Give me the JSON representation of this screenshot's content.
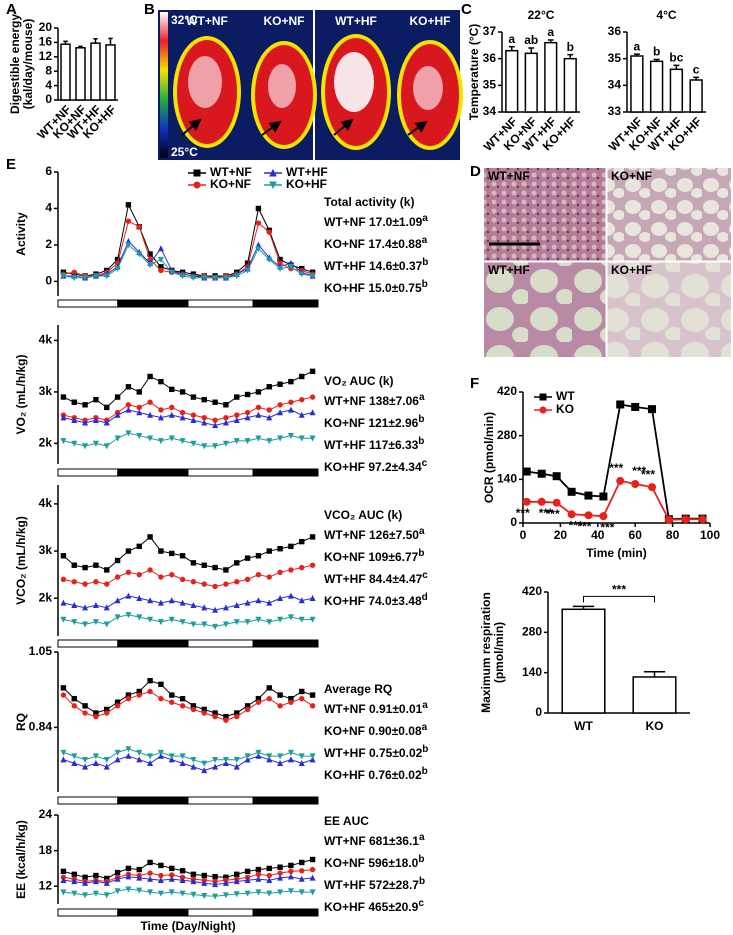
{
  "panel_labels": [
    "A",
    "B",
    "C",
    "D",
    "E",
    "F"
  ],
  "thermal_image": {
    "labels": [
      "WT+NF",
      "KO+NF",
      "WT+HF",
      "KO+HF"
    ],
    "scale_max": "32°C",
    "scale_min": "25°C"
  },
  "histology": {
    "labels": [
      "WT+NF",
      "KO+NF",
      "WT+HF",
      "KO+HF"
    ]
  },
  "chart_data": [
    {
      "type": "bar",
      "y_label": [
        "Digestible energy",
        "(kal/day/mouse)"
      ],
      "categories": [
        "WT+NF",
        "KO+NF",
        "WT+HF",
        "KO+HF"
      ],
      "values": [
        15.5,
        14.5,
        15.8,
        15.3
      ],
      "errors": [
        0.8,
        0.4,
        1.2,
        1.8
      ],
      "color": "#ffffff",
      "ylim": [
        0,
        20
      ],
      "yticks": [
        0,
        4,
        8,
        12,
        16,
        20
      ]
    },
    {
      "type": "bar",
      "title": "22°C",
      "y_label": [
        "Temperature (°C)"
      ],
      "categories": [
        "WT+NF",
        "KO+NF",
        "WT+HF",
        "KO+HF"
      ],
      "values": [
        36.3,
        36.2,
        36.6,
        36.0
      ],
      "errors": [
        0.15,
        0.2,
        0.1,
        0.15
      ],
      "annotations": [
        "a",
        "ab",
        "a",
        "b"
      ],
      "color": "#ffffff",
      "ylim": [
        34,
        37
      ],
      "yticks": [
        34,
        35,
        36,
        37
      ]
    },
    {
      "type": "bar",
      "title": "4°C",
      "categories": [
        "WT+NF",
        "KO+NF",
        "WT+HF",
        "KO+HF"
      ],
      "values": [
        35.1,
        34.9,
        34.6,
        34.2
      ],
      "errors": [
        0.07,
        0.07,
        0.15,
        0.1
      ],
      "annotations": [
        "a",
        "b",
        "bc",
        "c"
      ],
      "color": "#ffffff",
      "ylim": [
        33,
        36
      ],
      "yticks": [
        33,
        34,
        35,
        36
      ]
    },
    {
      "type": "line",
      "y_label": [
        "Activity"
      ],
      "ylim": [
        -0.8,
        6
      ],
      "yticks": [
        0,
        2,
        4,
        6
      ],
      "legend": "top",
      "stats_title": "Total activity (k)",
      "stats": [
        {
          "text": "WT+NF 17.0±1.09",
          "letter": "a"
        },
        {
          "text": "KO+NF 17.4±0.88",
          "letter": "a"
        },
        {
          "text": "WT+HF 14.6±0.37",
          "letter": "b"
        },
        {
          "text": "KO+HF 15.0±0.75",
          "letter": "b"
        }
      ],
      "series": [
        {
          "name": "WT+NF",
          "color": "#000000",
          "marker": "square",
          "values": [
            0.5,
            0.4,
            0.3,
            0.4,
            0.6,
            1.2,
            4.2,
            3.0,
            1.5,
            0.8,
            0.6,
            0.5,
            0.4,
            0.3,
            0.3,
            0.3,
            0.5,
            1.0,
            4.0,
            2.8,
            1.2,
            0.9,
            0.7,
            0.5
          ]
        },
        {
          "name": "KO+NF",
          "color": "#e8211b",
          "marker": "circle",
          "values": [
            0.4,
            0.5,
            0.3,
            0.3,
            0.5,
            1.0,
            3.3,
            3.0,
            1.2,
            0.6,
            0.5,
            0.4,
            0.3,
            0.3,
            0.2,
            0.3,
            0.4,
            0.8,
            3.2,
            2.7,
            1.0,
            0.7,
            0.6,
            0.4
          ]
        },
        {
          "name": "WT+HF",
          "color": "#2b2bd6",
          "marker": "triangle",
          "values": [
            0.3,
            0.3,
            0.2,
            0.3,
            0.4,
            0.8,
            2.2,
            1.6,
            1.0,
            1.8,
            0.6,
            0.4,
            0.3,
            0.2,
            0.2,
            0.2,
            0.4,
            0.7,
            2.0,
            1.3,
            0.8,
            1.0,
            0.5,
            0.3
          ]
        },
        {
          "name": "KO+HF",
          "color": "#1a9e9e",
          "marker": "triangle-down",
          "values": [
            0.3,
            0.2,
            0.2,
            0.3,
            0.3,
            0.7,
            2.0,
            1.5,
            0.9,
            1.2,
            0.5,
            0.3,
            0.2,
            0.2,
            0.2,
            0.2,
            0.3,
            0.6,
            1.8,
            1.2,
            0.7,
            0.8,
            0.4,
            0.3
          ]
        }
      ]
    },
    {
      "type": "line",
      "y_label": [
        "VO₂ (mL/h/kg)"
      ],
      "ylim": [
        1600,
        4300
      ],
      "yticks": [
        {
          "value": 2000,
          "label": "2k"
        },
        {
          "value": 3000,
          "label": "3k"
        },
        {
          "value": 4000,
          "label": "4k"
        }
      ],
      "stats_title": "VO₂  AUC (k)",
      "stats": [
        {
          "text": "WT+NF 138±7.06",
          "letter": "a"
        },
        {
          "text": "KO+NF 121±2.96",
          "letter": "b"
        },
        {
          "text": "WT+HF 117±6.33",
          "letter": "b"
        },
        {
          "text": "KO+HF 97.2±4.34",
          "letter": "c"
        }
      ],
      "series": [
        {
          "color": "#000000",
          "marker": "square",
          "values": [
            2900,
            2800,
            2750,
            2850,
            2700,
            2900,
            3100,
            3000,
            3300,
            3200,
            3050,
            3000,
            2900,
            2850,
            2800,
            2750,
            2900,
            2950,
            3000,
            3100,
            3150,
            3200,
            3300,
            3400
          ]
        },
        {
          "color": "#e8211b",
          "marker": "circle",
          "values": [
            2550,
            2500,
            2450,
            2500,
            2450,
            2600,
            2750,
            2700,
            2800,
            2650,
            2700,
            2600,
            2550,
            2500,
            2450,
            2500,
            2550,
            2600,
            2700,
            2650,
            2750,
            2800,
            2850,
            2900
          ]
        },
        {
          "color": "#2b2bd6",
          "marker": "triangle",
          "values": [
            2500,
            2450,
            2400,
            2450,
            2400,
            2550,
            2650,
            2600,
            2550,
            2500,
            2550,
            2500,
            2450,
            2400,
            2350,
            2400,
            2450,
            2500,
            2550,
            2500,
            2600,
            2650,
            2550,
            2600
          ]
        },
        {
          "color": "#1a9e9e",
          "marker": "triangle-down",
          "values": [
            2050,
            2000,
            1950,
            2000,
            1950,
            2100,
            2200,
            2150,
            2100,
            2050,
            2100,
            2050,
            2000,
            1950,
            1950,
            2000,
            2050,
            2050,
            2100,
            2050,
            2100,
            2150,
            2100,
            2100
          ]
        }
      ]
    },
    {
      "type": "line",
      "y_label": [
        "VCO₂ (mL/h/kg)"
      ],
      "ylim": [
        1200,
        4400
      ],
      "yticks": [
        {
          "value": 2000,
          "label": "2k"
        },
        {
          "value": 3000,
          "label": "3k"
        },
        {
          "value": 4000,
          "label": "4k"
        }
      ],
      "stats_title": "VCO₂  AUC (k)",
      "stats": [
        {
          "text": "WT+NF 126±7.50",
          "letter": "a"
        },
        {
          "text": "KO+NF 109±6.77",
          "letter": "b"
        },
        {
          "text": "WT+HF 84.4±4.47",
          "letter": "c"
        },
        {
          "text": "KO+HF 74.0±3.48",
          "letter": "d"
        }
      ],
      "series": [
        {
          "color": "#000000",
          "marker": "square",
          "values": [
            2900,
            2700,
            2650,
            2700,
            2600,
            2800,
            3000,
            3100,
            3300,
            3000,
            2950,
            2900,
            2750,
            2700,
            2650,
            2600,
            2750,
            2850,
            2900,
            3000,
            3050,
            3100,
            3200,
            3300
          ]
        },
        {
          "color": "#e8211b",
          "marker": "circle",
          "values": [
            2400,
            2350,
            2300,
            2350,
            2300,
            2450,
            2550,
            2500,
            2600,
            2450,
            2500,
            2400,
            2350,
            2300,
            2250,
            2300,
            2350,
            2400,
            2500,
            2450,
            2550,
            2600,
            2650,
            2700
          ]
        },
        {
          "color": "#2b2bd6",
          "marker": "triangle",
          "values": [
            1900,
            1850,
            1800,
            1850,
            1800,
            1950,
            2050,
            2000,
            1950,
            1900,
            1950,
            1900,
            1850,
            1800,
            1750,
            1800,
            1850,
            1900,
            1950,
            1900,
            2000,
            2050,
            1950,
            2000
          ]
        },
        {
          "color": "#1a9e9e",
          "marker": "triangle-down",
          "values": [
            1550,
            1500,
            1450,
            1500,
            1450,
            1600,
            1650,
            1600,
            1550,
            1500,
            1550,
            1500,
            1450,
            1450,
            1400,
            1450,
            1500,
            1500,
            1550,
            1500,
            1550,
            1600,
            1550,
            1550
          ]
        }
      ]
    },
    {
      "type": "line",
      "y_label": [
        "RQ"
      ],
      "ylim": [
        0.66,
        1.05
      ],
      "yticks": [
        0.84,
        1.05
      ],
      "stats_title": "Average RQ",
      "stats": [
        {
          "text": "WT+NF 0.91±0.01",
          "letter": "a"
        },
        {
          "text": "KO+NF 0.90±0.08",
          "letter": "a"
        },
        {
          "text": "WT+HF 0.75±0.02",
          "letter": "b"
        },
        {
          "text": "KO+HF 0.76±0.02",
          "letter": "b"
        }
      ],
      "series": [
        {
          "color": "#000000",
          "marker": "square",
          "values": [
            0.95,
            0.92,
            0.9,
            0.88,
            0.89,
            0.91,
            0.93,
            0.94,
            0.97,
            0.96,
            0.93,
            0.92,
            0.9,
            0.89,
            0.88,
            0.87,
            0.88,
            0.9,
            0.92,
            0.95,
            0.93,
            0.92,
            0.94,
            0.93
          ]
        },
        {
          "color": "#e8211b",
          "marker": "circle",
          "values": [
            0.93,
            0.9,
            0.88,
            0.87,
            0.88,
            0.9,
            0.92,
            0.93,
            0.94,
            0.92,
            0.91,
            0.9,
            0.89,
            0.88,
            0.87,
            0.86,
            0.87,
            0.89,
            0.91,
            0.92,
            0.9,
            0.91,
            0.92,
            0.9
          ]
        },
        {
          "color": "#2b2bd6",
          "marker": "triangle",
          "values": [
            0.75,
            0.74,
            0.73,
            0.74,
            0.73,
            0.75,
            0.76,
            0.75,
            0.74,
            0.76,
            0.75,
            0.74,
            0.73,
            0.72,
            0.73,
            0.74,
            0.73,
            0.75,
            0.76,
            0.75,
            0.74,
            0.75,
            0.74,
            0.75
          ]
        },
        {
          "color": "#1a9e9e",
          "marker": "triangle-down",
          "values": [
            0.77,
            0.76,
            0.75,
            0.76,
            0.75,
            0.77,
            0.78,
            0.77,
            0.76,
            0.77,
            0.76,
            0.76,
            0.75,
            0.74,
            0.75,
            0.75,
            0.75,
            0.76,
            0.77,
            0.76,
            0.76,
            0.77,
            0.76,
            0.76
          ]
        }
      ]
    },
    {
      "type": "line",
      "y_label": [
        "EE (kcal/h/kg)"
      ],
      "x_label": "Time (Day/Night)",
      "ylim": [
        9,
        24
      ],
      "yticks": [
        12,
        18,
        24
      ],
      "stats_title": "EE AUC",
      "stats": [
        {
          "text": "WT+NF 681±36.1",
          "letter": "a"
        },
        {
          "text": "KO+NF 596±18.0",
          "letter": "b"
        },
        {
          "text": "WT+HF 572±28.7",
          "letter": "b"
        },
        {
          "text": "KO+HF 465±20.9",
          "letter": "c"
        }
      ],
      "series": [
        {
          "color": "#000000",
          "marker": "square",
          "values": [
            14.5,
            14.0,
            13.5,
            13.8,
            13.3,
            14.3,
            15.0,
            14.8,
            16.0,
            15.5,
            15.0,
            14.6,
            14.0,
            13.8,
            13.6,
            13.5,
            14.0,
            14.5,
            14.8,
            15.0,
            15.2,
            15.5,
            16.0,
            16.5
          ]
        },
        {
          "color": "#e8211b",
          "marker": "circle",
          "values": [
            13.5,
            13.2,
            12.8,
            13.0,
            12.8,
            13.5,
            14.0,
            13.8,
            14.2,
            13.8,
            13.9,
            13.5,
            13.2,
            13.0,
            12.8,
            13.0,
            13.2,
            13.5,
            14.0,
            13.8,
            14.2,
            14.5,
            14.6,
            14.8
          ]
        },
        {
          "color": "#2b2bd6",
          "marker": "triangle",
          "values": [
            13.0,
            12.8,
            12.5,
            12.8,
            12.5,
            13.2,
            13.6,
            13.4,
            13.2,
            13.0,
            13.2,
            13.0,
            12.8,
            12.5,
            12.3,
            12.5,
            12.8,
            13.0,
            13.2,
            13.0,
            13.4,
            13.6,
            13.2,
            13.4
          ]
        },
        {
          "color": "#1a9e9e",
          "marker": "triangle-down",
          "values": [
            11.0,
            10.8,
            10.5,
            10.8,
            10.5,
            11.2,
            11.5,
            11.3,
            11.0,
            10.8,
            11.0,
            10.8,
            10.6,
            10.4,
            10.3,
            10.5,
            10.7,
            10.8,
            11.0,
            10.8,
            11.0,
            11.2,
            11.0,
            11.0
          ]
        }
      ]
    },
    {
      "type": "line",
      "y_label": [
        "OCR (pmol/min)"
      ],
      "x_label": "Time (min)",
      "x": [
        2,
        10,
        18,
        26,
        35,
        43,
        52,
        60,
        69,
        78,
        87,
        96
      ],
      "xlim": [
        0,
        100
      ],
      "xticks": [
        0,
        20,
        40,
        60,
        80,
        100
      ],
      "ylim": [
        0,
        420
      ],
      "yticks": [
        0,
        140,
        280,
        420
      ],
      "legend": "top-left",
      "significance": "***",
      "series": [
        {
          "name": "WT",
          "color": "#000000",
          "marker": "square",
          "values": [
            165,
            158,
            150,
            100,
            88,
            85,
            380,
            372,
            365,
            12,
            14,
            14
          ]
        },
        {
          "name": "KO",
          "color": "#e8211b",
          "marker": "circle",
          "values": [
            68,
            68,
            65,
            28,
            25,
            22,
            135,
            125,
            115,
            10,
            12,
            12
          ]
        }
      ]
    },
    {
      "type": "bar",
      "y_label": [
        "Maximum respiration",
        "(pmol/min)"
      ],
      "categories": [
        "WT",
        "KO"
      ],
      "values": [
        360,
        125
      ],
      "errors": [
        10,
        18
      ],
      "color": "#ffffff",
      "ylim": [
        0,
        420
      ],
      "yticks": [
        0,
        140,
        280,
        420
      ],
      "significance": "***"
    }
  ]
}
